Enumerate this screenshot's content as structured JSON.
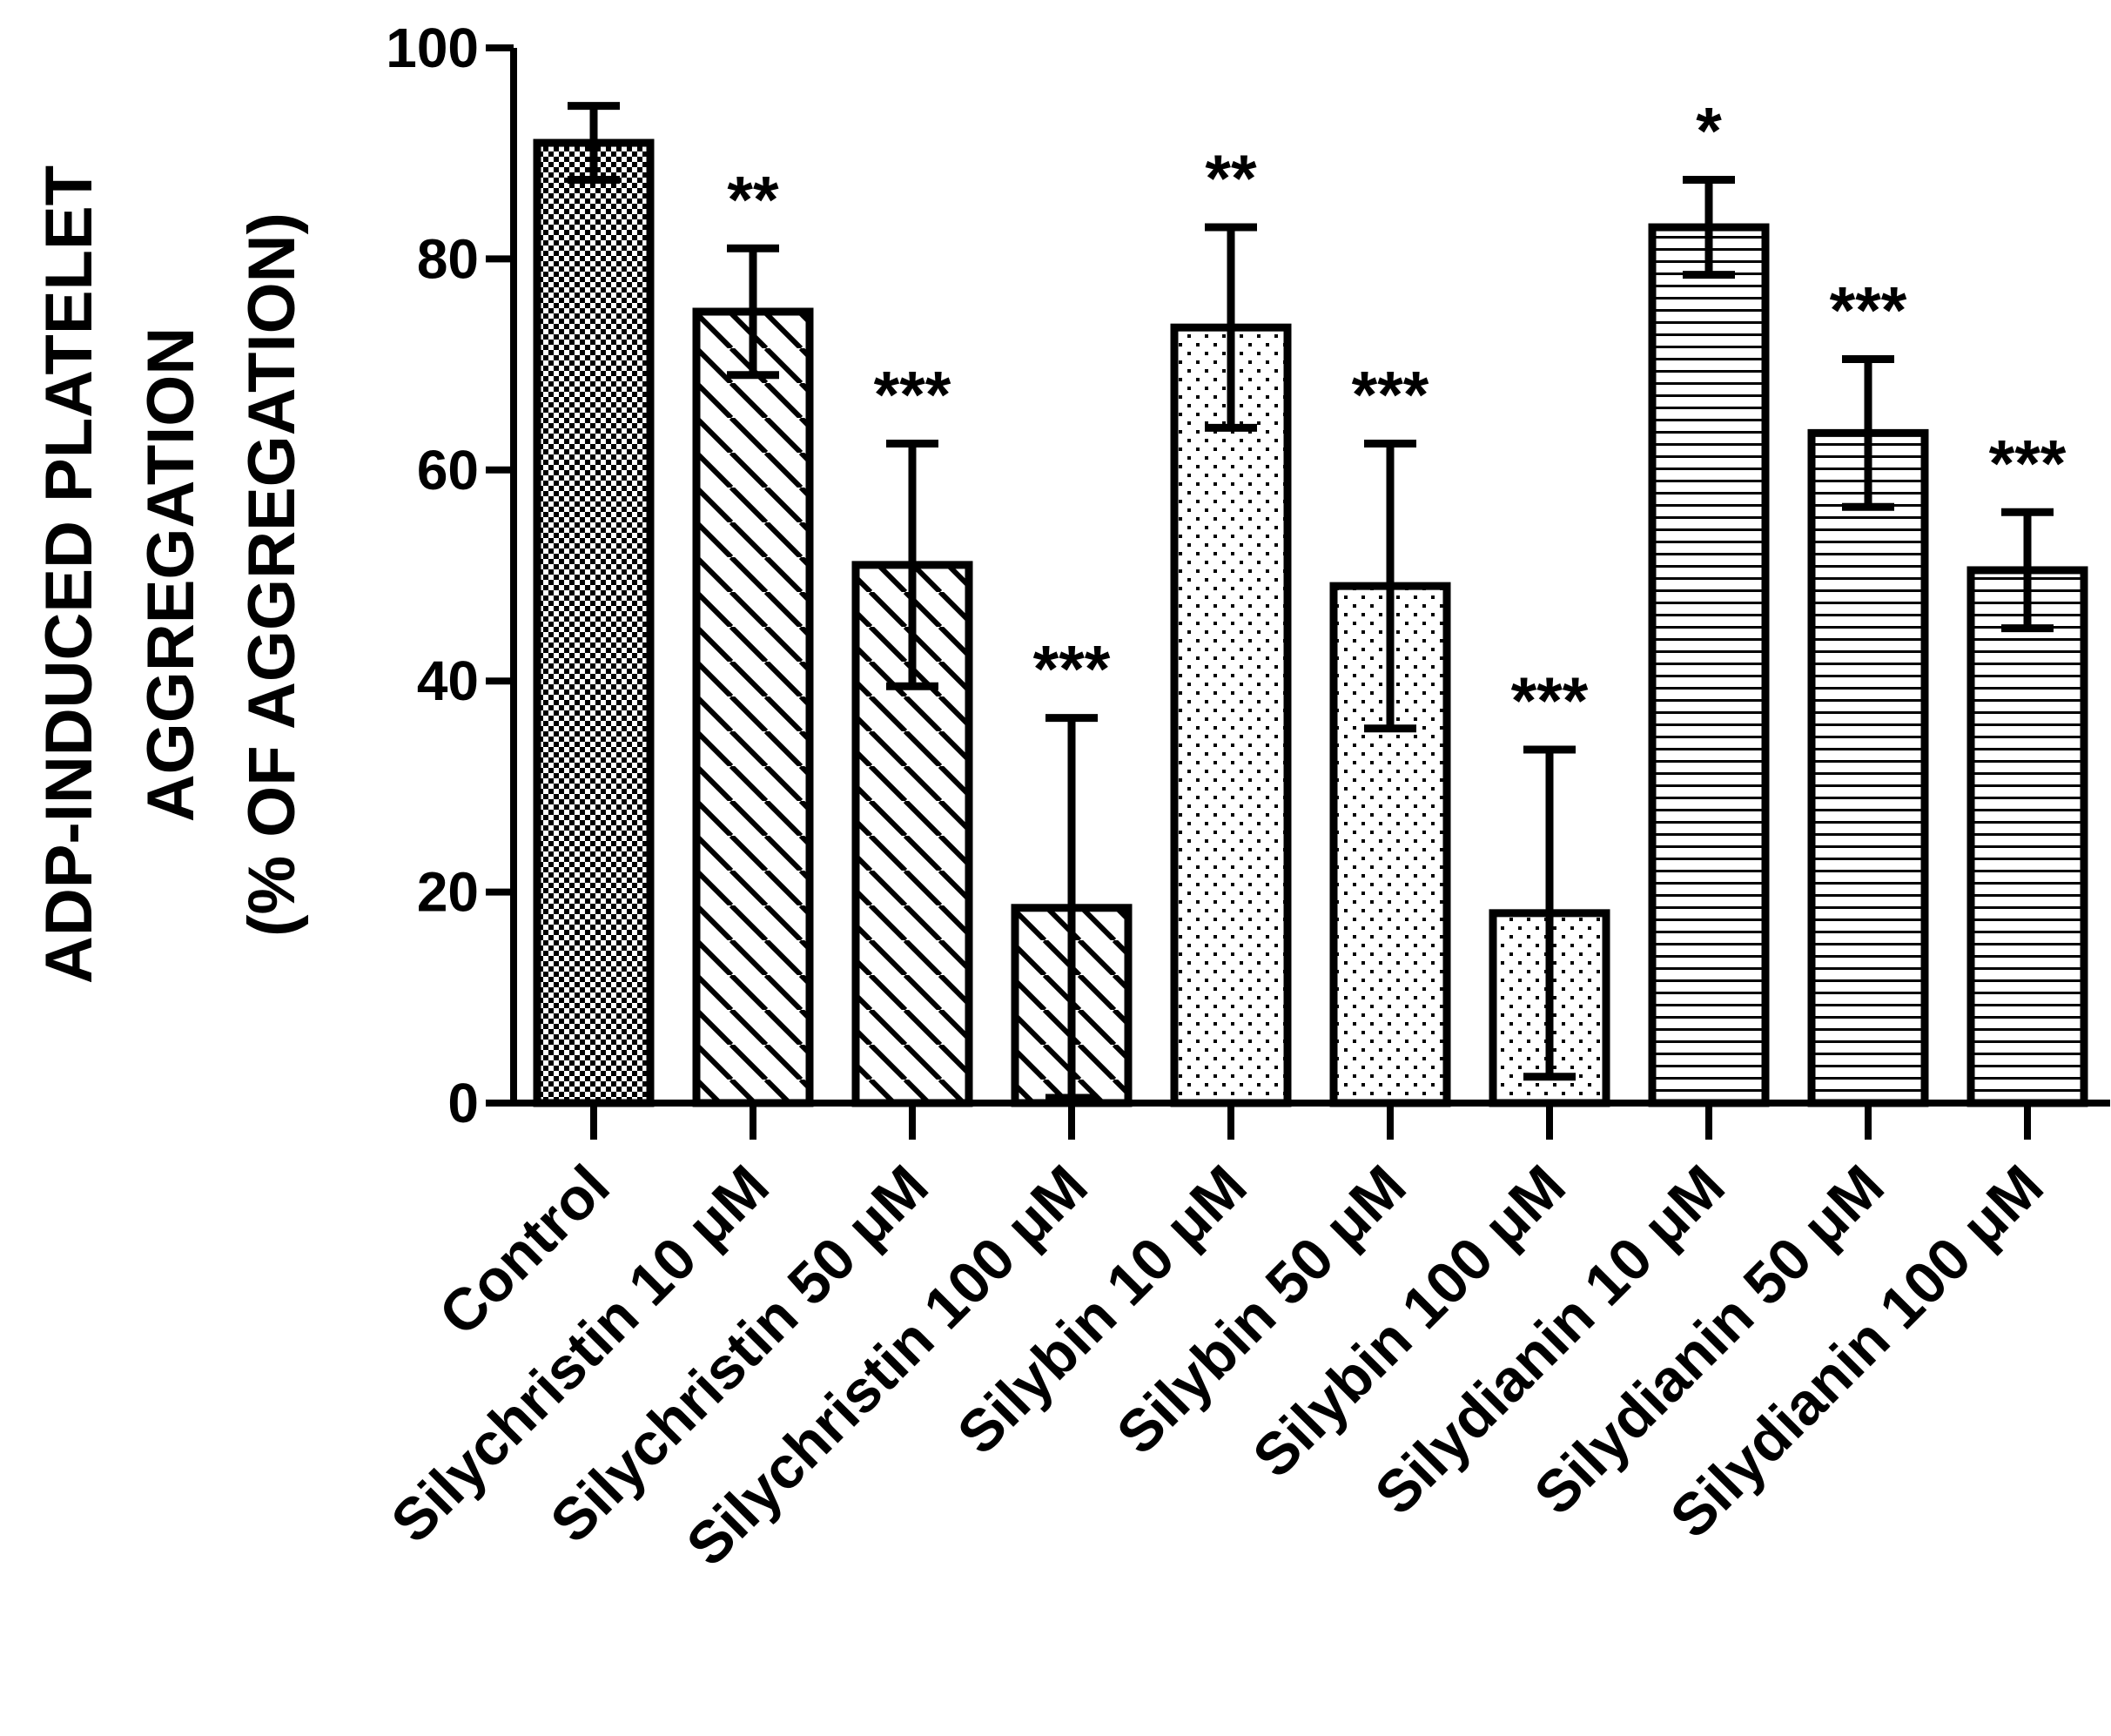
{
  "chart_data": {
    "type": "bar",
    "title": "",
    "xlabel": "",
    "ylabel_lines": [
      "ADP-INDUCED PLATELET",
      "AGGREGATION",
      "(% OF AGGREGATION)"
    ],
    "ylim": [
      0,
      100
    ],
    "yticks": [
      0,
      20,
      40,
      60,
      80,
      100
    ],
    "grid": false,
    "legend": "none",
    "categories": [
      "Control",
      "Silychristin 10 μM",
      "Silychristin 50 μM",
      "Silychristin 100 μM",
      "Silybin 10 μM",
      "Silybin 50 μM",
      "Silybin 100 μM",
      "Silydianin 10 μM",
      "Silydianin 50 μM",
      "Silydianin 100 μM"
    ],
    "values": [
      91,
      75,
      51,
      18.5,
      73.5,
      49,
      18,
      83,
      63.5,
      50.5
    ],
    "errors": [
      3.5,
      6,
      11.5,
      18,
      9.5,
      13.5,
      15.5,
      4.5,
      7,
      5.5
    ],
    "significance": [
      "",
      "**",
      "***",
      "***",
      "**",
      "***",
      "***",
      "*",
      "***",
      "***"
    ],
    "patterns": [
      "checker",
      "diag",
      "diag",
      "diag",
      "dots",
      "dots",
      "dots",
      "hlines",
      "hlines",
      "hlines"
    ],
    "colors": {
      "ink": "#000000",
      "fill": "#ffffff"
    }
  }
}
